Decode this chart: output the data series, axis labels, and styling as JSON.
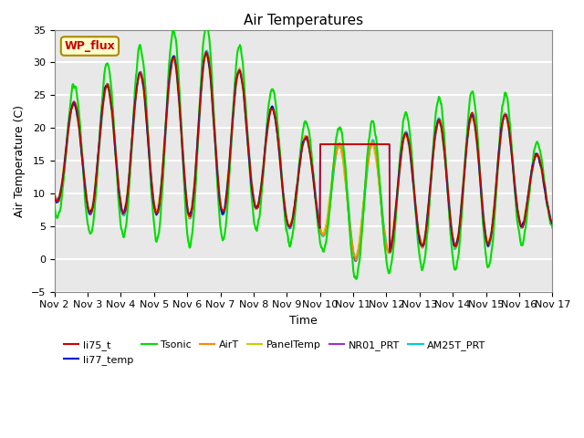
{
  "title": "Air Temperatures",
  "xlabel": "Time",
  "ylabel": "Air Temperature (C)",
  "ylim": [
    -5,
    35
  ],
  "xlim_days": [
    0,
    15
  ],
  "background_color": "#e8e8e8",
  "grid_color": "white",
  "series": {
    "li75_t": {
      "color": "#cc0000",
      "lw": 1.2
    },
    "li77_temp": {
      "color": "#0000cc",
      "lw": 1.2
    },
    "Tsonic": {
      "color": "#00dd00",
      "lw": 1.5
    },
    "AirT": {
      "color": "#ff8800",
      "lw": 1.2
    },
    "PanelTemp": {
      "color": "#cccc00",
      "lw": 1.2
    },
    "NR01_PRT": {
      "color": "#9933cc",
      "lw": 1.2
    },
    "AM25T_PRT": {
      "color": "#00cccc",
      "lw": 1.8
    }
  },
  "legend_box": {
    "label": "WP_flux",
    "facecolor": "#ffffcc",
    "edgecolor": "#aa8800",
    "textcolor": "#cc0000",
    "fontsize": 9
  },
  "xtick_labels": [
    "Nov 2",
    "Nov 3",
    "Nov 4",
    "Nov 5",
    "Nov 6",
    "Nov 7",
    "Nov 8",
    "Nov 9",
    "Nov 10",
    "Nov 11",
    "Nov 12",
    "Nov 13",
    "Nov 14",
    "Nov 15",
    "Nov 16",
    "Nov 17"
  ],
  "xtick_positions": [
    0,
    1,
    2,
    3,
    4,
    5,
    6,
    7,
    8,
    9,
    10,
    11,
    12,
    13,
    14,
    15
  ],
  "ytick_positions": [
    -5,
    0,
    5,
    10,
    15,
    20,
    25,
    30,
    35
  ]
}
